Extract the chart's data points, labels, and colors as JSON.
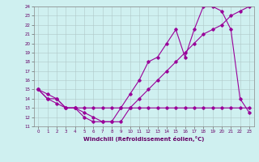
{
  "xlabel": "Windchill (Refroidissement éolien,°C)",
  "bg_color": "#cff0f0",
  "grid_color": "#b0c8c8",
  "line_color": "#990099",
  "xlim": [
    -0.5,
    23.5
  ],
  "ylim": [
    11,
    24
  ],
  "xticks": [
    0,
    1,
    2,
    3,
    4,
    5,
    6,
    7,
    8,
    9,
    10,
    11,
    12,
    13,
    14,
    15,
    16,
    17,
    18,
    19,
    20,
    21,
    22,
    23
  ],
  "yticks": [
    11,
    12,
    13,
    14,
    15,
    16,
    17,
    18,
    19,
    20,
    21,
    22,
    23,
    24
  ],
  "line1_x": [
    0,
    1,
    2,
    3,
    4,
    5,
    6,
    7,
    8,
    9,
    10,
    11,
    12,
    13,
    14,
    15,
    16,
    17,
    18,
    19,
    20,
    21,
    22,
    23
  ],
  "line1_y": [
    15,
    14,
    14,
    13,
    13,
    12,
    11.5,
    11.5,
    11.5,
    13,
    14.5,
    16,
    18,
    18.5,
    20,
    21.5,
    18.5,
    21.5,
    24,
    24,
    23.5,
    21.5,
    14,
    12.5
  ],
  "line2_x": [
    0,
    1,
    2,
    3,
    4,
    5,
    6,
    7,
    8,
    9,
    10,
    11,
    12,
    13,
    14,
    15,
    16,
    17,
    18,
    19,
    20,
    21,
    22,
    23
  ],
  "line2_y": [
    15,
    14,
    13.5,
    13,
    13,
    12.5,
    12,
    11.5,
    11.5,
    11.5,
    13,
    14,
    15,
    16,
    17,
    18,
    19,
    20,
    21,
    21.5,
    22,
    23,
    23.5,
    24
  ],
  "line3_x": [
    0,
    1,
    2,
    3,
    4,
    5,
    6,
    7,
    8,
    9,
    10,
    11,
    12,
    13,
    14,
    15,
    16,
    17,
    18,
    19,
    20,
    21,
    22,
    23
  ],
  "line3_y": [
    15,
    14.5,
    14,
    13,
    13,
    13,
    13,
    13,
    13,
    13,
    13,
    13,
    13,
    13,
    13,
    13,
    13,
    13,
    13,
    13,
    13,
    13,
    13,
    13
  ]
}
